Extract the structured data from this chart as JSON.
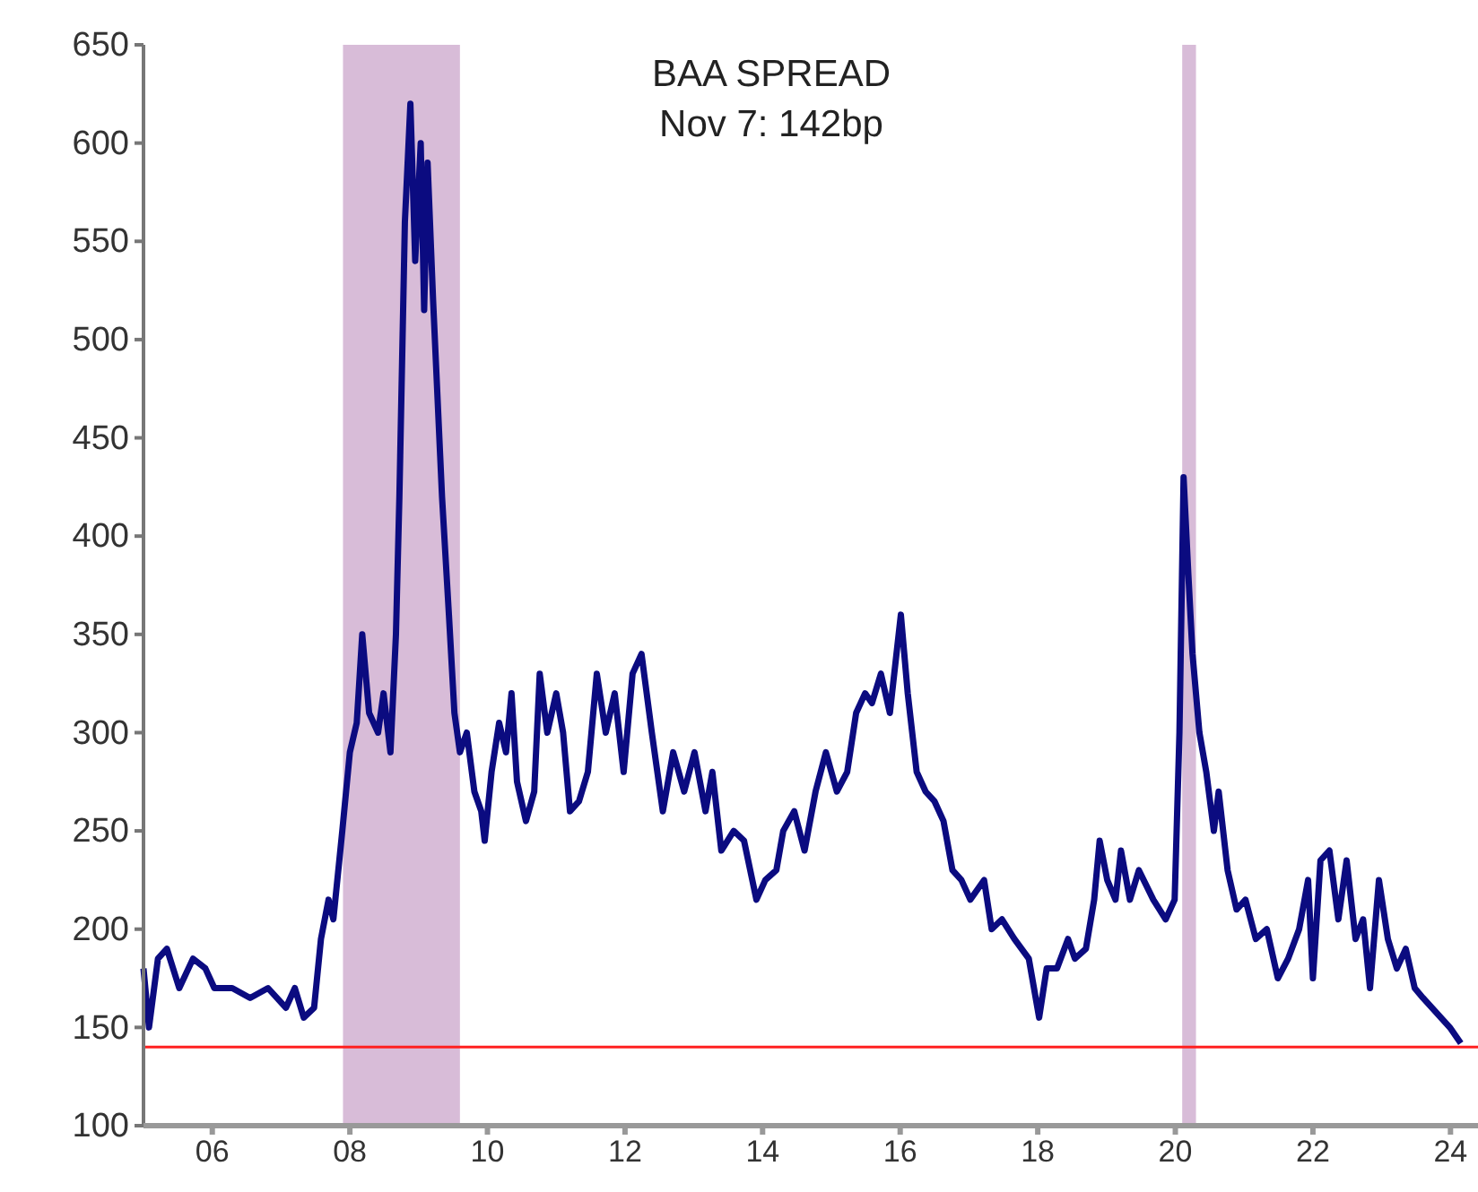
{
  "chart_data": {
    "type": "line",
    "title": "BAA SPREAD",
    "subtitle": "Nov 7: 142bp",
    "x": [
      2005.0,
      2005.08,
      2005.21,
      2005.34,
      2005.52,
      2005.72,
      2005.9,
      2006.03,
      2006.29,
      2006.55,
      2006.81,
      2007.07,
      2007.2,
      2007.33,
      2007.48,
      2007.58,
      2007.69,
      2007.76,
      2007.89,
      2008.0,
      2008.1,
      2008.18,
      2008.28,
      2008.41,
      2008.49,
      2008.59,
      2008.67,
      2008.72,
      2008.8,
      2008.88,
      2008.95,
      2009.03,
      2009.08,
      2009.13,
      2009.21,
      2009.34,
      2009.44,
      2009.52,
      2009.6,
      2009.7,
      2009.81,
      2009.91,
      2009.96,
      2010.06,
      2010.17,
      2010.27,
      2010.35,
      2010.43,
      2010.56,
      2010.68,
      2010.76,
      2010.87,
      2011.0,
      2011.1,
      2011.2,
      2011.33,
      2011.46,
      2011.59,
      2011.72,
      2011.85,
      2011.98,
      2012.11,
      2012.24,
      2012.39,
      2012.55,
      2012.7,
      2012.86,
      2013.01,
      2013.17,
      2013.27,
      2013.4,
      2013.58,
      2013.73,
      2013.91,
      2014.04,
      2014.2,
      2014.3,
      2014.46,
      2014.61,
      2014.77,
      2014.92,
      2015.08,
      2015.23,
      2015.36,
      2015.49,
      2015.59,
      2015.72,
      2015.85,
      2016.01,
      2016.11,
      2016.24,
      2016.37,
      2016.5,
      2016.63,
      2016.76,
      2016.89,
      2017.02,
      2017.22,
      2017.33,
      2017.48,
      2017.66,
      2017.87,
      2018.02,
      2018.13,
      2018.28,
      2018.44,
      2018.54,
      2018.7,
      2018.82,
      2018.9,
      2019.01,
      2019.13,
      2019.21,
      2019.34,
      2019.47,
      2019.68,
      2019.86,
      2019.99,
      2020.06,
      2020.12,
      2020.19,
      2020.25,
      2020.35,
      2020.45,
      2020.56,
      2020.63,
      2020.76,
      2020.89,
      2021.02,
      2021.17,
      2021.33,
      2021.49,
      2021.64,
      2021.8,
      2021.93,
      2022.0,
      2022.11,
      2022.24,
      2022.37,
      2022.49,
      2022.62,
      2022.73,
      2022.83,
      2022.96,
      2023.09,
      2023.22,
      2023.35,
      2023.48,
      2023.6,
      2023.73,
      2023.86,
      2023.99,
      2024.15
    ],
    "series": [
      {
        "color": "#0b0b80",
        "values": [
          180,
          150,
          185,
          190,
          170,
          185,
          180,
          170,
          170,
          165,
          170,
          160,
          170,
          155,
          160,
          195,
          215,
          205,
          250,
          290,
          305,
          350,
          310,
          300,
          320,
          290,
          350,
          420,
          560,
          620,
          540,
          600,
          515,
          590,
          520,
          420,
          360,
          310,
          290,
          300,
          270,
          260,
          245,
          280,
          305,
          290,
          320,
          275,
          255,
          270,
          330,
          300,
          320,
          300,
          260,
          265,
          280,
          330,
          300,
          320,
          280,
          330,
          340,
          300,
          260,
          290,
          270,
          290,
          260,
          280,
          240,
          250,
          245,
          215,
          225,
          230,
          250,
          260,
          240,
          270,
          290,
          270,
          280,
          310,
          320,
          315,
          330,
          310,
          360,
          320,
          280,
          270,
          265,
          255,
          230,
          225,
          215,
          225,
          200,
          205,
          195,
          185,
          155,
          180,
          180,
          195,
          185,
          190,
          215,
          245,
          225,
          215,
          240,
          215,
          230,
          215,
          205,
          215,
          300,
          430,
          380,
          340,
          300,
          280,
          250,
          270,
          230,
          210,
          215,
          195,
          200,
          175,
          185,
          200,
          225,
          175,
          235,
          240,
          205,
          235,
          195,
          205,
          170,
          225,
          195,
          180,
          190,
          170,
          165,
          160,
          155,
          150,
          142
        ]
      }
    ],
    "xlim": [
      2005,
      2024.4
    ],
    "xticks": [
      {
        "value": 2006,
        "label": "06"
      },
      {
        "value": 2008,
        "label": "08"
      },
      {
        "value": 2010,
        "label": "10"
      },
      {
        "value": 2012,
        "label": "12"
      },
      {
        "value": 2014,
        "label": "14"
      },
      {
        "value": 2016,
        "label": "16"
      },
      {
        "value": 2018,
        "label": "18"
      },
      {
        "value": 2020,
        "label": "20"
      },
      {
        "value": 2022,
        "label": "22"
      },
      {
        "value": 2024,
        "label": "24"
      }
    ],
    "ylim": [
      100,
      650
    ],
    "yticks": [
      100,
      150,
      200,
      250,
      300,
      350,
      400,
      450,
      500,
      550,
      600,
      650
    ],
    "ref_lines": [
      {
        "axis": "y",
        "value": 140,
        "color": "#ff2020"
      }
    ],
    "bands": [
      {
        "axis": "x",
        "from": 2007.9,
        "to": 2009.6,
        "color": "#d8bcd8"
      },
      {
        "axis": "x",
        "from": 2020.1,
        "to": 2020.3,
        "color": "#d8bcd8"
      }
    ],
    "marker": "none",
    "line_style": "solid"
  }
}
